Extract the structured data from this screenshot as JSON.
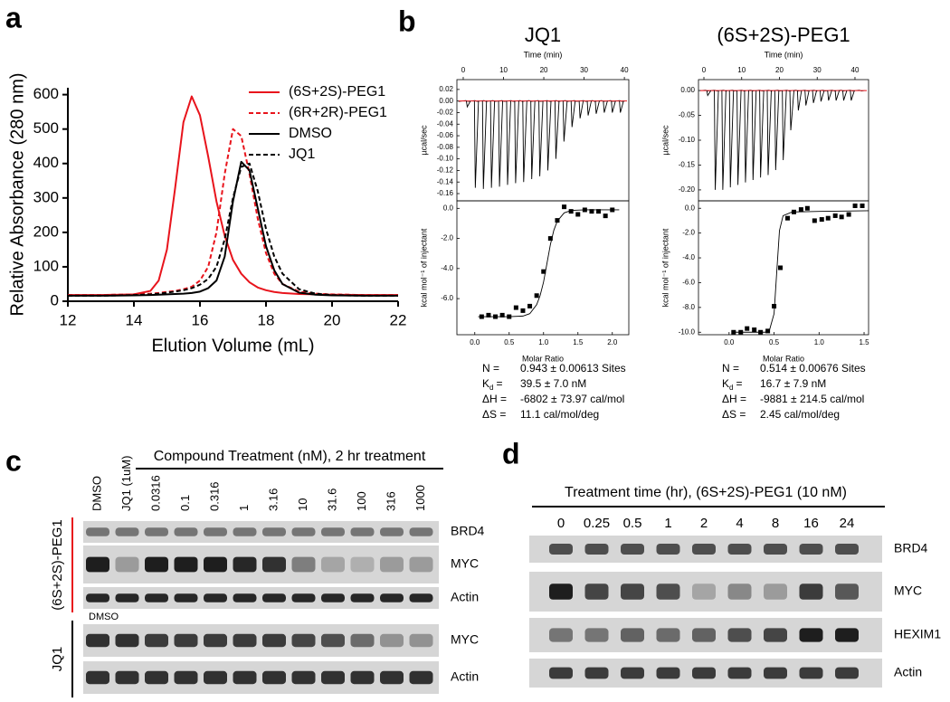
{
  "panel_labels": [
    "a",
    "b",
    "c",
    "d"
  ],
  "chart_data": [
    {
      "type": "line",
      "xlabel": "Elution Volume (mL)",
      "ylabel": "Relative Absorbance (280 nm)",
      "xlim": [
        12,
        22
      ],
      "ylim": [
        0,
        620
      ],
      "xticks": [
        12,
        14,
        16,
        18,
        20,
        22
      ],
      "yticks": [
        0,
        100,
        200,
        300,
        400,
        500,
        600
      ],
      "legend": "upper right",
      "x": [
        12,
        13,
        14,
        14.5,
        14.75,
        15,
        15.25,
        15.5,
        15.75,
        16,
        16.25,
        16.5,
        16.75,
        17,
        17.25,
        17.5,
        17.75,
        18,
        18.25,
        18.5,
        19,
        19.5,
        20,
        21,
        22
      ],
      "series": [
        {
          "name": "(6S+2S)-PEG1",
          "color": "#e8141c",
          "dashed": false,
          "values": [
            18,
            18,
            20,
            30,
            60,
            150,
            330,
            520,
            595,
            540,
            420,
            290,
            190,
            120,
            80,
            55,
            40,
            32,
            27,
            24,
            21,
            20,
            19,
            18,
            18
          ]
        },
        {
          "name": "(6R+2R)-PEG1",
          "color": "#e8141c",
          "dashed": true,
          "values": [
            18,
            18,
            20,
            22,
            24,
            27,
            30,
            35,
            42,
            60,
            100,
            200,
            370,
            500,
            480,
            370,
            240,
            140,
            80,
            50,
            28,
            22,
            20,
            18,
            18
          ]
        },
        {
          "name": "DMSO",
          "color": "#000000",
          "dashed": false,
          "values": [
            16,
            16,
            17,
            18,
            19,
            20,
            21,
            22,
            24,
            28,
            38,
            60,
            130,
            290,
            405,
            380,
            270,
            160,
            90,
            50,
            25,
            19,
            17,
            16,
            16
          ]
        },
        {
          "name": "JQ1",
          "color": "#000000",
          "dashed": true,
          "values": [
            16,
            16,
            18,
            20,
            22,
            25,
            28,
            32,
            38,
            48,
            65,
            100,
            180,
            300,
            390,
            400,
            320,
            210,
            130,
            80,
            35,
            22,
            18,
            16,
            16
          ]
        }
      ]
    },
    {
      "type": "thermogram",
      "title": "JQ1",
      "title_color": "#000000",
      "xlabel": "Time (min)",
      "ylabel": "µcal/sec",
      "xlim": [
        -1.57,
        41.1
      ],
      "ylim": [
        -0.1725,
        0.037
      ],
      "xticks": [
        0,
        10,
        20,
        30,
        40
      ],
      "yticks": [
        0.02,
        {
          "value": 0,
          "label": "0.00"
        },
        -0.02,
        -0.04,
        -0.06,
        -0.08,
        {
          "value": -0.1,
          "label": "-0.10"
        },
        -0.12,
        -0.14,
        -0.16
      ],
      "color": "#000000",
      "baseline_color": "#e8141c",
      "x": [
        1,
        3,
        5,
        7,
        9,
        11,
        13,
        15,
        17,
        19,
        21,
        23,
        25,
        27,
        29,
        31,
        33,
        35,
        37,
        39
      ],
      "values": [
        -0.01,
        -0.15,
        -0.152,
        -0.15,
        -0.148,
        -0.145,
        -0.142,
        -0.14,
        -0.135,
        -0.13,
        -0.12,
        -0.1,
        -0.07,
        -0.045,
        -0.03,
        -0.025,
        -0.022,
        -0.02,
        -0.02,
        -0.02
      ]
    },
    {
      "type": "scatter",
      "xlabel": "Molar Ratio",
      "ylabel": "kcal mol⁻¹ of injectant",
      "xlim": [
        -0.26,
        2.24
      ],
      "ylim": [
        -8.4,
        0.5
      ],
      "xticks": [
        {
          "value": 0,
          "label": "0.0"
        },
        0.5,
        {
          "value": 1,
          "label": "1.0"
        },
        1.5,
        {
          "value": 2,
          "label": "2.0"
        }
      ],
      "yticks": [
        {
          "value": 0,
          "label": "0.0"
        },
        {
          "value": -2,
          "label": "-2.0"
        },
        {
          "value": -4,
          "label": "-4.0"
        },
        {
          "value": -6,
          "label": "-6.0"
        }
      ],
      "color": "#000000",
      "x": [
        0.1,
        0.2,
        0.3,
        0.4,
        0.5,
        0.6,
        0.7,
        0.8,
        0.9,
        1.0,
        1.1,
        1.2,
        1.3,
        1.4,
        1.5,
        1.6,
        1.7,
        1.8,
        1.9,
        2.0
      ],
      "values": [
        -7.2,
        -7.1,
        -7.2,
        -7.1,
        -7.2,
        -6.6,
        -6.8,
        -6.5,
        -5.8,
        -4.2,
        -2.0,
        -0.8,
        0.1,
        -0.2,
        -0.4,
        -0.1,
        -0.2,
        -0.2,
        -0.5,
        -0.1
      ],
      "fit_x": [
        0.05,
        0.5,
        0.7,
        0.8,
        0.9,
        0.95,
        1.0,
        1.05,
        1.1,
        1.15,
        1.2,
        1.3,
        1.4,
        1.6,
        2.1
      ],
      "fit_values": [
        -7.2,
        -7.2,
        -7.16,
        -7.0,
        -6.4,
        -5.8,
        -4.9,
        -3.65,
        -2.4,
        -1.45,
        -0.85,
        -0.3,
        -0.14,
        -0.1,
        -0.1
      ]
    },
    {
      "type": "thermogram",
      "title": "(6S+2S)-PEG1",
      "title_color": "#e8141c",
      "xlabel": "Time (min)",
      "ylabel": "µcal/sec",
      "xlim": [
        -1.44,
        43.6
      ],
      "ylim": [
        -0.222,
        0.022
      ],
      "xticks": [
        0,
        10,
        20,
        30,
        40
      ],
      "yticks": [
        {
          "value": 0,
          "label": "0.00"
        },
        -0.05,
        {
          "value": -0.1,
          "label": "-0.10"
        },
        -0.15,
        {
          "value": -0.2,
          "label": "-0.20"
        }
      ],
      "color": "#000000",
      "baseline_color": "#e8141c",
      "x": [
        1,
        3,
        5,
        7,
        9,
        11,
        13,
        15,
        17,
        19,
        21,
        23,
        25,
        27,
        29,
        31,
        33,
        35,
        37,
        39
      ],
      "values": [
        -0.01,
        -0.2,
        -0.2,
        -0.195,
        -0.19,
        -0.185,
        -0.18,
        -0.175,
        -0.17,
        -0.16,
        -0.14,
        -0.08,
        -0.04,
        -0.03,
        -0.025,
        -0.022,
        -0.02,
        -0.02,
        -0.02,
        -0.02
      ]
    },
    {
      "type": "scatter",
      "xlabel": "Molar Ratio",
      "ylabel": "kcal mol⁻¹ of injectant",
      "xlim": [
        -0.34,
        1.55
      ],
      "ylim": [
        -10.2,
        0.6
      ],
      "xticks": [
        {
          "value": 0,
          "label": "0.0"
        },
        0.5,
        {
          "value": 1,
          "label": "1.0"
        },
        1.5
      ],
      "yticks": [
        {
          "value": 0,
          "label": "0.0"
        },
        {
          "value": -2,
          "label": "-2.0"
        },
        {
          "value": -4,
          "label": "-4.0"
        },
        {
          "value": -6,
          "label": "-6.0"
        },
        {
          "value": -8,
          "label": "-8.0"
        },
        {
          "value": -10,
          "label": "-10.0"
        }
      ],
      "color": "#000000",
      "x": [
        0.05,
        0.13,
        0.2,
        0.28,
        0.35,
        0.43,
        0.5,
        0.57,
        0.65,
        0.72,
        0.8,
        0.87,
        0.95,
        1.03,
        1.1,
        1.18,
        1.25,
        1.33,
        1.4,
        1.48
      ],
      "values": [
        -10.0,
        -10.0,
        -9.7,
        -9.8,
        -10.0,
        -9.9,
        -7.9,
        -4.8,
        -0.8,
        -0.3,
        -0.1,
        0.0,
        -1.0,
        -0.9,
        -0.8,
        -0.6,
        -0.7,
        -0.5,
        0.2,
        0.2
      ],
      "fit_x": [
        0.05,
        0.4,
        0.45,
        0.5,
        0.53,
        0.56,
        0.6,
        0.7,
        1.0,
        1.55
      ],
      "fit_values": [
        -10.0,
        -10.0,
        -9.8,
        -8.5,
        -5.1,
        -1.8,
        -0.6,
        -0.3,
        -0.25,
        -0.2
      ]
    }
  ],
  "itc_stats": [
    [
      {
        "label": "N =",
        "value": "0.943 ± 0.00613 Sites"
      },
      {
        "label": "K",
        "sub": "d",
        "eq": "=",
        "value": "39.5 ± 7.0 nM"
      },
      {
        "label": "ΔH =",
        "value": "-6802 ± 73.97 cal/mol"
      },
      {
        "label": "ΔS =",
        "value": "11.1 cal/mol/deg"
      }
    ],
    [
      {
        "label": "N =",
        "value": "0.514 ± 0.00676 Sites"
      },
      {
        "label": "K",
        "sub": "d",
        "eq": "=",
        "value": "16.7 ± 7.9 nM"
      },
      {
        "label": "ΔH =",
        "value": "-9881 ± 214.5 cal/mol"
      },
      {
        "label": "ΔS =",
        "value": "2.45 cal/mol/deg"
      }
    ]
  ],
  "blot_c": {
    "header": "Compound Treatment (nM), 2 hr treatment",
    "lanes": [
      "DMSO",
      "JQ1 (1uM)",
      "0.0316",
      "0.1",
      "0.316",
      "1",
      "3.16",
      "10",
      "31.6",
      "100",
      "316",
      "1000"
    ],
    "groups": [
      {
        "label": "(6S+2S)-PEG1",
        "color": "#e8141c",
        "rows": [
          "BRD4",
          "MYC",
          "Actin"
        ]
      },
      {
        "label": "JQ1",
        "color": "#000000",
        "note": "DMSO",
        "rows": [
          "MYC",
          "Actin"
        ]
      }
    ]
  },
  "blot_d": {
    "header": "Treatment time (hr), (6S+2S)-PEG1 (10 nM)",
    "lanes": [
      "0",
      "0.25",
      "0.5",
      "1",
      "2",
      "4",
      "8",
      "16",
      "24"
    ],
    "rows": [
      "BRD4",
      "MYC",
      "HEXIM1",
      "Actin"
    ]
  }
}
